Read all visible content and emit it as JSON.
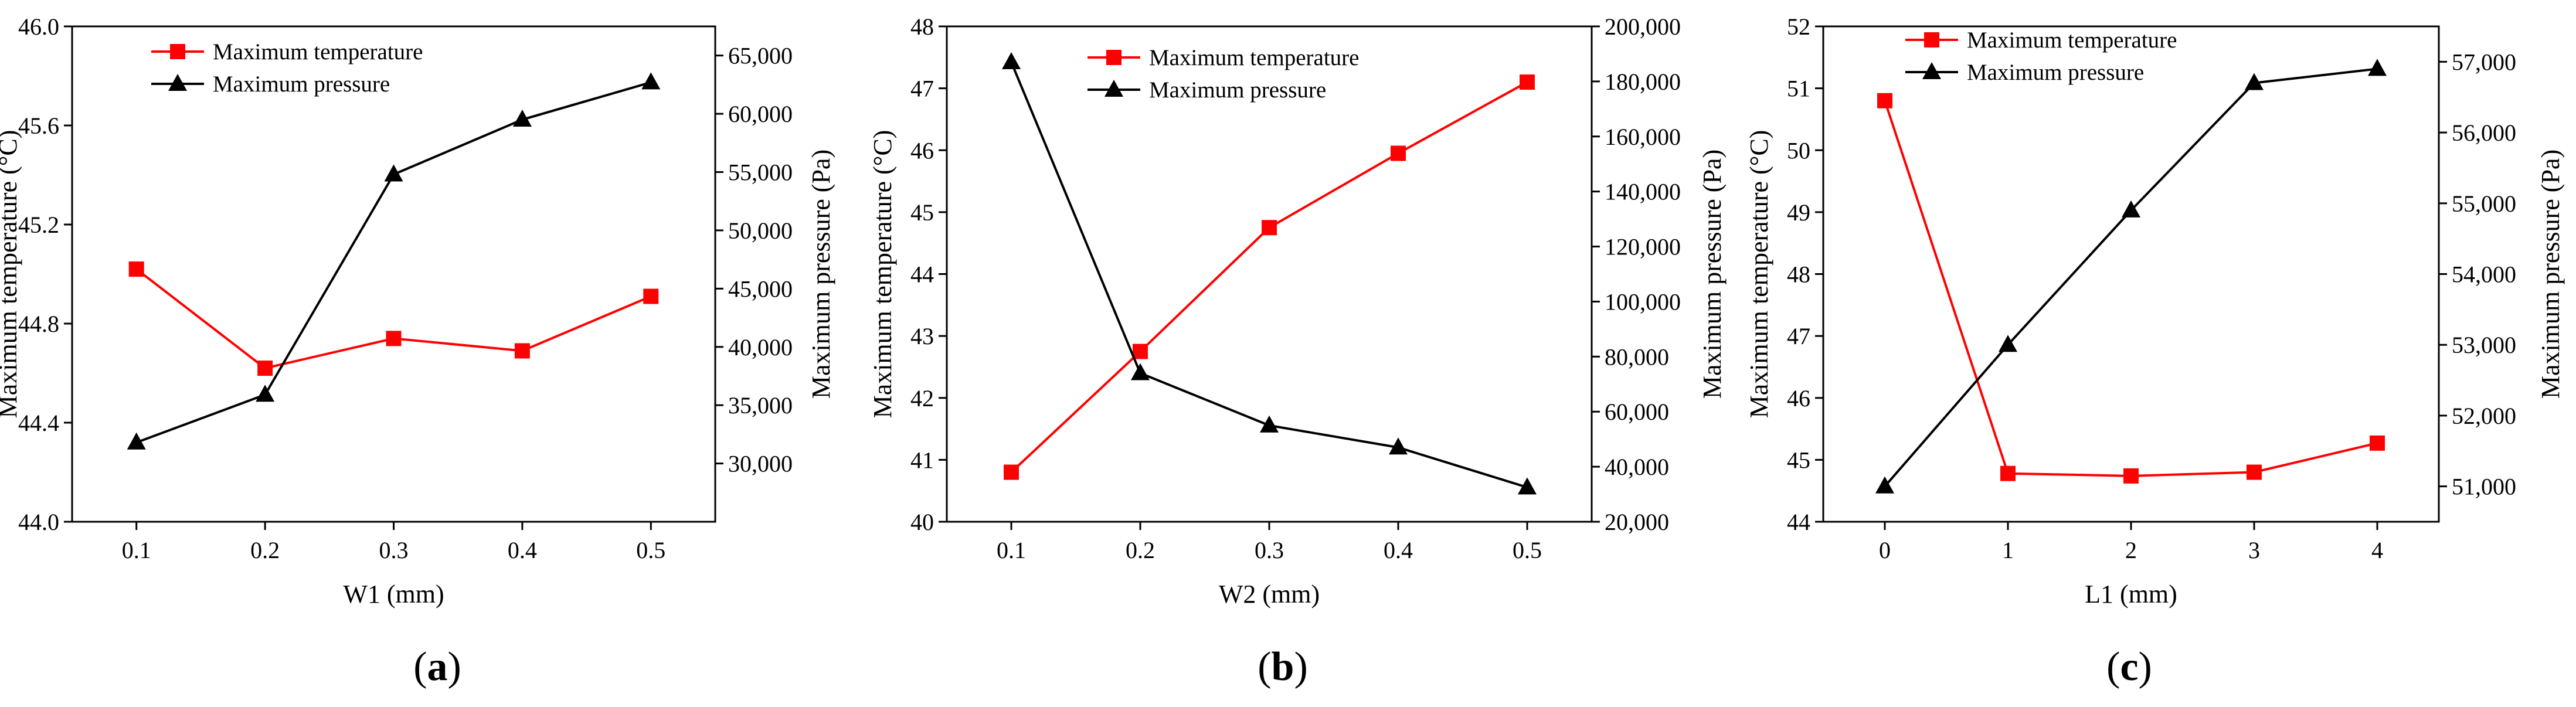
{
  "colors": {
    "temperature": "#ff0000",
    "pressure": "#000000",
    "axis": "#000000"
  },
  "chart_data": [
    {
      "type": "line",
      "panel": "(a)",
      "panel_letter": "a",
      "xlabel": "W1 (mm)",
      "ylabel_left": "Maximum temperature (°C)",
      "ylabel_right": "Maximum pressure (Pa)",
      "x": [
        0.1,
        0.2,
        0.3,
        0.4,
        0.5
      ],
      "x_tick_labels": [
        "0.1",
        "0.2",
        "0.3",
        "0.4",
        "0.5"
      ],
      "xlim": [
        0.05,
        0.55
      ],
      "ylim_left": [
        44.0,
        46.0
      ],
      "y_left_ticks": [
        44.0,
        44.4,
        44.8,
        45.2,
        45.6,
        46.0
      ],
      "y_left_tick_labels": [
        "44.0",
        "44.4",
        "44.8",
        "45.2",
        "45.6",
        "46.0"
      ],
      "ylim_right": [
        25000,
        67500
      ],
      "y_right_ticks": [
        30000,
        35000,
        40000,
        45000,
        50000,
        55000,
        60000,
        65000
      ],
      "y_right_tick_labels": [
        "30,000",
        "35,000",
        "40,000",
        "45,000",
        "50,000",
        "55,000",
        "60,000",
        "65,000"
      ],
      "legend_position": "top-left",
      "series": [
        {
          "name": "Maximum temperature",
          "axis": "left",
          "marker": "square",
          "values": [
            45.02,
            44.62,
            44.74,
            44.69,
            44.91
          ]
        },
        {
          "name": "Maximum pressure",
          "axis": "right",
          "marker": "triangle",
          "values": [
            31800,
            35900,
            54800,
            59500,
            62700
          ]
        }
      ]
    },
    {
      "type": "line",
      "panel": "(b)",
      "panel_letter": "b",
      "xlabel": "W2 (mm)",
      "ylabel_left": "Maximum temperature (°C)",
      "ylabel_right": "Maximum pressure (Pa)",
      "x": [
        0.1,
        0.2,
        0.3,
        0.4,
        0.5
      ],
      "x_tick_labels": [
        "0.1",
        "0.2",
        "0.3",
        "0.4",
        "0.5"
      ],
      "xlim": [
        0.05,
        0.55
      ],
      "ylim_left": [
        40,
        48
      ],
      "y_left_ticks": [
        40,
        41,
        42,
        43,
        44,
        45,
        46,
        47,
        48
      ],
      "y_left_tick_labels": [
        "40",
        "41",
        "42",
        "43",
        "44",
        "45",
        "46",
        "47",
        "48"
      ],
      "ylim_right": [
        20000,
        200000
      ],
      "y_right_ticks": [
        20000,
        40000,
        60000,
        80000,
        100000,
        120000,
        140000,
        160000,
        180000,
        200000
      ],
      "y_right_tick_labels": [
        "20,000",
        "40,000",
        "60,000",
        "80,000",
        "100,000",
        "120,000",
        "140,000",
        "160,000",
        "180,000",
        "200,000"
      ],
      "legend_position": "top-center",
      "series": [
        {
          "name": "Maximum temperature",
          "axis": "left",
          "marker": "square",
          "values": [
            40.8,
            42.75,
            44.75,
            45.95,
            47.1
          ]
        },
        {
          "name": "Maximum pressure",
          "axis": "right",
          "marker": "triangle",
          "values": [
            187000,
            74000,
            55000,
            47000,
            32500
          ]
        }
      ]
    },
    {
      "type": "line",
      "panel": "(c)",
      "panel_letter": "c",
      "xlabel": "L1 (mm)",
      "ylabel_left": "Maximum temperature (°C)",
      "ylabel_right": "Maximum pressure (Pa)",
      "x": [
        0,
        1,
        2,
        3,
        4
      ],
      "x_tick_labels": [
        "0",
        "1",
        "2",
        "3",
        "4"
      ],
      "xlim": [
        -0.5,
        4.5
      ],
      "ylim_left": [
        44,
        52
      ],
      "y_left_ticks": [
        44,
        45,
        46,
        47,
        48,
        49,
        50,
        51,
        52
      ],
      "y_left_tick_labels": [
        "44",
        "45",
        "46",
        "47",
        "48",
        "49",
        "50",
        "51",
        "52"
      ],
      "ylim_right": [
        50500,
        57500
      ],
      "y_right_ticks": [
        51000,
        52000,
        53000,
        54000,
        55000,
        56000,
        57000
      ],
      "y_right_tick_labels": [
        "51,000",
        "52,000",
        "53,000",
        "54,000",
        "55,000",
        "56,000",
        "57,000"
      ],
      "legend_position": "top-left",
      "series": [
        {
          "name": "Maximum temperature",
          "axis": "left",
          "marker": "square",
          "values": [
            50.8,
            44.78,
            44.74,
            44.8,
            45.27
          ]
        },
        {
          "name": "Maximum pressure",
          "axis": "right",
          "marker": "triangle",
          "values": [
            51000,
            53000,
            54900,
            56700,
            56900
          ]
        }
      ]
    }
  ]
}
